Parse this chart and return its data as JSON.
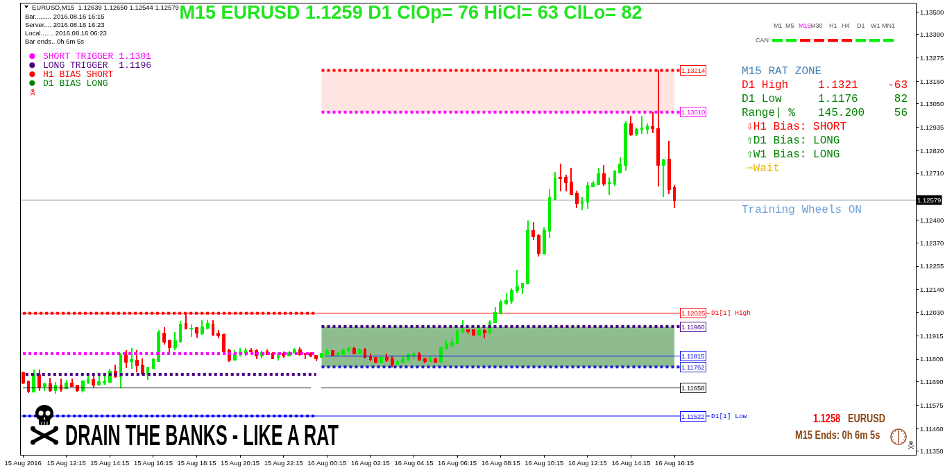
{
  "chart_data": {
    "type": "candlestick",
    "title": "M15 EURUSD 1.1259 D1 ClOp= 76 HiCl= 63 ClLo= 82",
    "x": [
      "2016-08-15T10:15",
      "2016-08-15T10:30",
      "2016-08-15T10:45",
      "2016-08-15T11:00",
      "2016-08-15T11:15",
      "2016-08-15T11:30",
      "2016-08-15T11:45",
      "2016-08-15T12:00",
      "2016-08-15T12:15",
      "2016-08-15T12:30",
      "2016-08-15T12:45",
      "2016-08-15T13:00",
      "2016-08-15T13:15",
      "2016-08-15T13:30",
      "2016-08-15T13:45",
      "2016-08-15T14:00",
      "2016-08-15T14:15",
      "2016-08-15T14:30",
      "2016-08-15T14:45",
      "2016-08-15T15:00",
      "2016-08-15T15:15",
      "2016-08-15T15:30",
      "2016-08-15T15:45",
      "2016-08-15T16:00",
      "2016-08-15T16:15",
      "2016-08-15T16:30",
      "2016-08-15T16:45",
      "2016-08-15T17:00",
      "2016-08-15T17:15",
      "2016-08-15T17:30",
      "2016-08-15T17:45",
      "2016-08-15T18:00",
      "2016-08-15T18:15",
      "2016-08-15T18:30",
      "2016-08-15T18:45",
      "2016-08-15T19:00",
      "2016-08-15T19:15",
      "2016-08-15T19:30",
      "2016-08-15T19:45",
      "2016-08-15T20:00",
      "2016-08-15T20:15",
      "2016-08-15T20:30",
      "2016-08-15T20:45",
      "2016-08-15T21:00",
      "2016-08-15T21:15",
      "2016-08-15T21:30",
      "2016-08-15T21:45",
      "2016-08-15T22:00",
      "2016-08-15T22:15",
      "2016-08-15T22:30",
      "2016-08-15T22:45",
      "2016-08-15T23:00",
      "2016-08-15T23:15",
      "2016-08-15T23:30",
      "2016-08-15T23:45",
      "2016-08-16T00:00",
      "2016-08-16T00:15",
      "2016-08-16T00:30",
      "2016-08-16T00:45",
      "2016-08-16T01:00",
      "2016-08-16T01:15",
      "2016-08-16T01:30",
      "2016-08-16T01:45",
      "2016-08-16T02:00",
      "2016-08-16T02:15",
      "2016-08-16T02:30",
      "2016-08-16T02:45",
      "2016-08-16T03:00",
      "2016-08-16T03:15",
      "2016-08-16T03:30",
      "2016-08-16T03:45",
      "2016-08-16T04:00",
      "2016-08-16T04:15",
      "2016-08-16T04:30",
      "2016-08-16T04:45",
      "2016-08-16T05:00",
      "2016-08-16T05:15",
      "2016-08-16T05:30",
      "2016-08-16T05:45",
      "2016-08-16T06:00",
      "2016-08-16T06:15",
      "2016-08-16T06:30",
      "2016-08-16T06:45",
      "2016-08-16T07:00",
      "2016-08-16T07:15",
      "2016-08-16T07:30",
      "2016-08-16T07:45",
      "2016-08-16T08:00",
      "2016-08-16T08:15",
      "2016-08-16T08:30",
      "2016-08-16T08:45",
      "2016-08-16T09:00",
      "2016-08-16T09:15",
      "2016-08-16T09:30",
      "2016-08-16T09:45",
      "2016-08-16T10:00",
      "2016-08-16T10:15",
      "2016-08-16T10:30",
      "2016-08-16T10:45",
      "2016-08-16T11:00",
      "2016-08-16T11:15",
      "2016-08-16T11:30",
      "2016-08-16T11:45",
      "2016-08-16T12:00",
      "2016-08-16T12:15",
      "2016-08-16T12:30",
      "2016-08-16T12:45",
      "2016-08-16T13:00",
      "2016-08-16T13:15",
      "2016-08-16T13:30",
      "2016-08-16T13:45",
      "2016-08-16T14:00",
      "2016-08-16T14:15",
      "2016-08-16T14:30",
      "2016-08-16T14:45",
      "2016-08-16T15:00",
      "2016-08-16T15:15",
      "2016-08-16T15:30",
      "2016-08-16T15:45",
      "2016-08-16T16:00",
      "2016-08-16T16:15"
    ],
    "ohlc": [
      [
        1.11732,
        1.11735,
        1.11683,
        1.11686
      ],
      [
        1.11692,
        1.11692,
        1.11638,
        1.11644
      ],
      [
        1.11641,
        1.11746,
        1.1164,
        1.11726
      ],
      [
        1.11723,
        1.11746,
        1.11649,
        1.11666
      ],
      [
        1.11669,
        1.11683,
        1.11647,
        1.11679
      ],
      [
        1.11678,
        1.11706,
        1.11644,
        1.11647
      ],
      [
        1.11647,
        1.11685,
        1.11635,
        1.11672
      ],
      [
        1.11672,
        1.11703,
        1.11644,
        1.11656
      ],
      [
        1.11658,
        1.11696,
        1.11658,
        1.11681
      ],
      [
        1.11681,
        1.11701,
        1.11667,
        1.11669
      ],
      [
        1.11672,
        1.11672,
        1.11644,
        1.11647
      ],
      [
        1.11649,
        1.11696,
        1.11642,
        1.11692
      ],
      [
        1.1169,
        1.11715,
        1.11681,
        1.11699
      ],
      [
        1.11699,
        1.11715,
        1.1166,
        1.11676
      ],
      [
        1.11676,
        1.11721,
        1.11676,
        1.11688
      ],
      [
        1.11686,
        1.11721,
        1.11678,
        1.11688
      ],
      [
        1.1169,
        1.11749,
        1.1169,
        1.11739
      ],
      [
        1.11739,
        1.11771,
        1.11712,
        1.11715
      ],
      [
        1.11715,
        1.11828,
        1.11664,
        1.11819
      ],
      [
        1.11817,
        1.11841,
        1.1176,
        1.11788
      ],
      [
        1.11789,
        1.11853,
        1.11757,
        1.11796
      ],
      [
        1.11794,
        1.11841,
        1.11739,
        1.11769
      ],
      [
        1.11769,
        1.11801,
        1.11726,
        1.11728
      ],
      [
        1.11726,
        1.1176,
        1.11701,
        1.1176
      ],
      [
        1.11757,
        1.11803,
        1.11757,
        1.11796
      ],
      [
        1.11791,
        1.11939,
        1.11791,
        1.1193
      ],
      [
        1.11927,
        1.11954,
        1.11875,
        1.11887
      ],
      [
        1.11893,
        1.11893,
        1.11828,
        1.11859
      ],
      [
        1.11859,
        1.1193,
        1.11848,
        1.11889
      ],
      [
        1.11887,
        1.11984,
        1.11885,
        1.1197
      ],
      [
        1.11975,
        1.12025,
        1.1195,
        1.1195
      ],
      [
        1.1195,
        1.11966,
        1.11912,
        1.11951
      ],
      [
        1.11952,
        1.11952,
        1.11909,
        1.1193
      ],
      [
        1.11925,
        1.11988,
        1.11923,
        1.11957
      ],
      [
        1.11952,
        1.11991,
        1.1195,
        1.11975
      ],
      [
        1.1197,
        1.11986,
        1.11916,
        1.11923
      ],
      [
        1.11927,
        1.11941,
        1.11907,
        1.11916
      ],
      [
        1.11921,
        1.11923,
        1.11837,
        1.11837
      ],
      [
        1.11841,
        1.11848,
        1.11791,
        1.11796
      ],
      [
        1.11798,
        1.11841,
        1.11798,
        1.11825
      ],
      [
        1.11828,
        1.11851,
        1.11817,
        1.11835
      ],
      [
        1.11832,
        1.11853,
        1.11817,
        1.11841
      ],
      [
        1.11841,
        1.11853,
        1.11832,
        1.11839
      ],
      [
        1.11841,
        1.11844,
        1.11803,
        1.11817
      ],
      [
        1.11817,
        1.11837,
        1.11807,
        1.11832
      ],
      [
        1.11835,
        1.11844,
        1.11823,
        1.11825
      ],
      [
        1.11828,
        1.11832,
        1.11803,
        1.11805
      ],
      [
        1.1181,
        1.11832,
        1.11796,
        1.11825
      ],
      [
        1.11828,
        1.11835,
        1.1181,
        1.11817
      ],
      [
        1.11817,
        1.11837,
        1.11817,
        1.11832
      ],
      [
        1.11832,
        1.11853,
        1.11832,
        1.11844
      ],
      [
        1.11844,
        1.11855,
        1.11821,
        1.11825
      ],
      [
        1.11828,
        1.11828,
        1.11805,
        1.11823
      ],
      [
        1.11828,
        1.1183,
        1.11814,
        1.11817
      ],
      [
        1.11817,
        1.11817,
        1.11794,
        1.11805
      ],
      [
        1.11812,
        1.11828,
        1.11812,
        1.11828
      ],
      [
        1.11825,
        1.11848,
        1.11825,
        1.11839
      ],
      [
        1.11841,
        1.11841,
        1.11819,
        1.11821
      ],
      [
        1.11825,
        1.11832,
        1.11819,
        1.11827
      ],
      [
        1.11823,
        1.11848,
        1.11823,
        1.11844
      ],
      [
        1.11844,
        1.11857,
        1.11841,
        1.11853
      ],
      [
        1.11853,
        1.11859,
        1.11828,
        1.11828
      ],
      [
        1.11828,
        1.11851,
        1.11828,
        1.11846
      ],
      [
        1.11844,
        1.11853,
        1.11807,
        1.1181
      ],
      [
        1.11812,
        1.11823,
        1.11794,
        1.11801
      ],
      [
        1.11807,
        1.11807,
        1.11785,
        1.11787
      ],
      [
        1.11785,
        1.11807,
        1.11785,
        1.11807
      ],
      [
        1.11807,
        1.11823,
        1.11791,
        1.11796
      ],
      [
        1.11801,
        1.1181,
        1.11762,
        1.11778
      ],
      [
        1.11776,
        1.11789,
        1.11776,
        1.11787
      ],
      [
        1.11785,
        1.1181,
        1.11785,
        1.11798
      ],
      [
        1.11796,
        1.11825,
        1.11794,
        1.11821
      ],
      [
        1.11822,
        1.1183,
        1.11805,
        1.11824
      ],
      [
        1.11823,
        1.1183,
        1.11798,
        1.11798
      ],
      [
        1.11801,
        1.11803,
        1.11783,
        1.11791
      ],
      [
        1.11791,
        1.1181,
        1.11791,
        1.11801
      ],
      [
        1.11801,
        1.11805,
        1.11787,
        1.11787
      ],
      [
        1.11789,
        1.11857,
        1.11783,
        1.11855
      ],
      [
        1.11853,
        1.11889,
        1.11851,
        1.11871
      ],
      [
        1.11869,
        1.11898,
        1.11862,
        1.11882
      ],
      [
        1.1188,
        1.11946,
        1.1188,
        1.11936
      ],
      [
        1.11932,
        1.11986,
        1.11932,
        1.11946
      ],
      [
        1.11943,
        1.11943,
        1.1193,
        1.11936
      ],
      [
        1.11943,
        1.11943,
        1.11921,
        1.11921
      ],
      [
        1.11921,
        1.1195,
        1.11918,
        1.11939
      ],
      [
        1.11941,
        1.11946,
        1.11907,
        1.11934
      ],
      [
        1.11934,
        1.11988,
        1.11927,
        1.1198
      ],
      [
        1.1198,
        1.12052,
        1.1198,
        1.12027
      ],
      [
        1.12025,
        1.12086,
        1.12023,
        1.12079
      ],
      [
        1.12077,
        1.1212,
        1.12068,
        1.12086
      ],
      [
        1.12084,
        1.12143,
        1.12075,
        1.12136
      ],
      [
        1.12136,
        1.12236,
        1.12125,
        1.12154
      ],
      [
        1.12152,
        1.1217,
        1.12122,
        1.1217
      ],
      [
        1.1217,
        1.12476,
        1.1217,
        1.12428
      ],
      [
        1.12428,
        1.12468,
        1.12389,
        1.12402
      ],
      [
        1.12405,
        1.12407,
        1.12305,
        1.12319
      ],
      [
        1.12317,
        1.12441,
        1.12317,
        1.12428
      ],
      [
        1.12428,
        1.12629,
        1.12398,
        1.12592
      ],
      [
        1.12584,
        1.12713,
        1.12581,
        1.12688
      ],
      [
        1.12691,
        1.12756,
        1.12627,
        1.12686
      ],
      [
        1.12691,
        1.12699,
        1.12627,
        1.12665
      ],
      [
        1.12667,
        1.12735,
        1.12609,
        1.12609
      ],
      [
        1.12611,
        1.12622,
        1.12545,
        1.12565
      ],
      [
        1.12565,
        1.12593,
        1.12534,
        1.12572
      ],
      [
        1.1257,
        1.12667,
        1.12541,
        1.12649
      ],
      [
        1.12645,
        1.1267,
        1.12645,
        1.12659
      ],
      [
        1.12656,
        1.12735,
        1.12656,
        1.12706
      ],
      [
        1.12706,
        1.12747,
        1.12652,
        1.12659
      ],
      [
        1.12662,
        1.12688,
        1.12609,
        1.12663
      ],
      [
        1.12659,
        1.12724,
        1.12654,
        1.12717
      ],
      [
        1.12713,
        1.12785,
        1.12713,
        1.12756
      ],
      [
        1.12751,
        1.12962,
        1.12728,
        1.12953
      ],
      [
        1.12953,
        1.12987,
        1.12896,
        1.12901
      ],
      [
        1.12903,
        1.12932,
        1.12896,
        1.12925
      ],
      [
        1.12923,
        1.12987,
        1.12907,
        1.12932
      ],
      [
        1.12928,
        1.12951,
        1.12907,
        1.12939
      ],
      [
        1.12937,
        1.13009,
        1.12912,
        1.12932
      ],
      [
        1.12928,
        1.13214,
        1.12649,
        1.12751
      ],
      [
        1.12751,
        1.12778,
        1.12599,
        1.12776
      ],
      [
        1.12778,
        1.12867,
        1.12611,
        1.12633
      ],
      [
        1.12639,
        1.1265,
        1.12544,
        1.12579
      ]
    ],
    "colors": [
      "#ff0000",
      "#ff0000",
      "#00ee00",
      "#ff0000",
      "#00ee00",
      "#ff0000",
      "#00ee00",
      "#ff0000",
      "#00ee00",
      "#ff0000",
      "#ff0000",
      "#00ee00",
      "#00ee00",
      "#ff0000",
      "#00ee00",
      "#00ee00",
      "#00ee00",
      "#ff0000",
      "#00ee00",
      "#ff0000",
      "#00ee00",
      "#ff0000",
      "#ff0000",
      "#00ee00",
      "#00ee00",
      "#00ee00",
      "#ff0000",
      "#ff0000",
      "#00ee00",
      "#00ee00",
      "#ff0000",
      "#00ee00",
      "#ff0000",
      "#00ee00",
      "#00ee00",
      "#ff0000",
      "#ff0000",
      "#ff0000",
      "#ff0000",
      "#00ee00",
      "#00ee00",
      "#00ee00",
      "#ff0000",
      "#ff0000",
      "#00ee00",
      "#ff0000",
      "#ff0000",
      "#00ee00",
      "#ff0000",
      "#00ee00",
      "#00ee00",
      "#ff0000",
      "#ff0000",
      "#ff0000",
      "#ff0000",
      "#00ee00",
      "#00ee00",
      "#ff0000",
      "#00ee00",
      "#00ee00",
      "#00ee00",
      "#ff0000",
      "#00ee00",
      "#ff0000",
      "#ff0000",
      "#ff0000",
      "#00ee00",
      "#ff0000",
      "#ff0000",
      "#00ee00",
      "#00ee00",
      "#00ee00",
      "#00ee00",
      "#ff0000",
      "#ff0000",
      "#00ee00",
      "#ff0000",
      "#00ee00",
      "#00ee00",
      "#00ee00",
      "#00ee00",
      "#00ee00",
      "#ff0000",
      "#ff0000",
      "#00ee00",
      "#ff0000",
      "#00ee00",
      "#00ee00",
      "#00ee00",
      "#00ee00",
      "#00ee00",
      "#00ee00",
      "#00ee00",
      "#00ee00",
      "#ff0000",
      "#ff0000",
      "#00ee00",
      "#00ee00",
      "#00ee00",
      "#ff0000",
      "#ff0000",
      "#ff0000",
      "#ff0000",
      "#00ee00",
      "#00ee00",
      "#00ee00",
      "#00ee00",
      "#ff0000",
      "#00ee00",
      "#00ee00",
      "#00ee00",
      "#00ee00",
      "#ff0000",
      "#00ee00",
      "#00ee00",
      "#00ee00",
      "#ff0000",
      "#ff0000",
      "#00ee00",
      "#ff0000",
      "#ff0000"
    ],
    "series": [
      {
        "type": "line",
        "x": [
          "2016-08-16T00:00",
          "2016-08-16T16:15"
        ],
        "values": [
          null,
          null
        ],
        "lower": [
          1.1301,
          1.1301
        ],
        "upper": [
          1.13214,
          1.13214
        ],
        "color": "#ffe4e1"
      },
      {
        "type": "line",
        "x": [
          "2016-08-16T00:00",
          "2016-08-16T16:15"
        ],
        "values": [
          null,
          null
        ],
        "lower": [
          1.11762,
          1.11762
        ],
        "upper": [
          1.1196,
          1.1196
        ],
        "color": "#8fbc8f"
      },
      {
        "type": "line",
        "x": [
          "2016-08-15T10:15",
          "2016-08-15T23:45"
        ],
        "values": [
          1.12025,
          1.12025
        ],
        "color": "#ff0000",
        "line_style": "dotted"
      },
      {
        "type": "line",
        "x": [
          "2016-08-15T10:15",
          "2016-08-15T23:45"
        ],
        "values": [
          1.11828,
          1.11828
        ],
        "color": "#ff00ff",
        "line_style": "dotted"
      },
      {
        "type": "line",
        "x": [
          "2016-08-15T10:22",
          "2016-08-15T23:45"
        ],
        "values": [
          1.11726,
          1.11726
        ],
        "color": "#4b0082",
        "line_style": "dotted"
      },
      {
        "type": "line",
        "x": [
          "2016-08-15T10:15",
          "2016-08-15T23:45"
        ],
        "values": [
          1.11522,
          1.11522
        ],
        "color": "#0000ff",
        "line_style": "dotted"
      },
      {
        "type": "line",
        "x": [
          "2016-08-15T10:15",
          "2016-08-15T23:30",
          "2016-08-15T23:45",
          "2016-08-16T00:00",
          "2016-08-16T16:30"
        ],
        "values": [
          1.11658,
          1.11658,
          null,
          1.11658,
          1.11658
        ],
        "color": "#000000"
      },
      {
        "type": "line",
        "x": [
          "2016-08-16T00:00",
          "2016-08-16T16:30"
        ],
        "values": [
          1.13214,
          1.13214
        ],
        "color": "#ff0000",
        "line_style": "dotted"
      },
      {
        "type": "line",
        "x": [
          "2016-08-16T00:00",
          "2016-08-16T16:30"
        ],
        "values": [
          1.1301,
          1.1301
        ],
        "color": "#ff00ff",
        "line_style": "dotted"
      },
      {
        "type": "line",
        "x": [
          "2016-08-16T00:00",
          "2016-08-16T16:30"
        ],
        "values": [
          1.1196,
          1.1196
        ],
        "color": "#4b0082",
        "line_style": "dotted"
      },
      {
        "type": "line",
        "x": [
          "2016-08-16T00:10",
          "2016-08-16T16:30"
        ],
        "values": [
          1.11815,
          1.11815
        ],
        "color": "#0000ff"
      },
      {
        "type": "line",
        "x": [
          "2016-08-16T00:00",
          "2016-08-16T16:30"
        ],
        "values": [
          1.11762,
          1.11762
        ],
        "color": "#2222cc",
        "line_style": "dotted"
      }
    ],
    "ref_lines": [
      {
        "axis": "y",
        "value": 1.12579,
        "label": "1.12579",
        "color": "#778899"
      },
      {
        "axis": "y",
        "value": 1.12025,
        "label": "D1[1] High",
        "color": "#ff0000"
      },
      {
        "axis": "y",
        "value": 1.11522,
        "label": "D1[1] Low",
        "color": "#0000ff"
      }
    ],
    "xlim": [
      "2016-08-15T10:09",
      "2016-08-17T03:22"
    ],
    "ylim": [
      1.11332,
      1.13542
    ],
    "xticks": [
      {
        "value": "2016-08-15T10:15",
        "label": "15 Aug 2016"
      },
      {
        "value": "2016-08-15T12:15",
        "label": "15 Aug 12:15"
      },
      {
        "value": "2016-08-15T14:15",
        "label": "15 Aug 14:15"
      },
      {
        "value": "2016-08-15T16:15",
        "label": "15 Aug 16:15"
      },
      {
        "value": "2016-08-15T18:15",
        "label": "15 Aug 18:15"
      },
      {
        "value": "2016-08-15T20:15",
        "label": "15 Aug 20:15"
      },
      {
        "value": "2016-08-15T22:15",
        "label": "15 Aug 22:15"
      },
      {
        "value": "2016-08-16T00:15",
        "label": "16 Aug 00:15"
      },
      {
        "value": "2016-08-16T02:15",
        "label": "16 Aug 02:15"
      },
      {
        "value": "2016-08-16T04:15",
        "label": "16 Aug 04:15"
      },
      {
        "value": "2016-08-16T06:15",
        "label": "16 Aug 06:15"
      },
      {
        "value": "2016-08-16T08:15",
        "label": "16 Aug 08:15"
      },
      {
        "value": "2016-08-16T10:15",
        "label": "16 Aug 10:15"
      },
      {
        "value": "2016-08-16T12:15",
        "label": "16 Aug 12:15"
      },
      {
        "value": "2016-08-16T14:15",
        "label": "16 Aug 14:15"
      },
      {
        "value": "2016-08-16T16:15",
        "label": "16 Aug 16:15"
      }
    ],
    "yticks": [
      {
        "value": 1.135,
        "label": "1.13500"
      },
      {
        "value": 1.1339,
        "label": "1.13390"
      },
      {
        "value": 1.13275,
        "label": "1.13275"
      },
      {
        "value": 1.1316,
        "label": "1.13160"
      },
      {
        "value": 1.1305,
        "label": "1.13050"
      },
      {
        "value": 1.12935,
        "label": "1.12935"
      },
      {
        "value": 1.1282,
        "label": "1.12820"
      },
      {
        "value": 1.1271,
        "label": "1.12710"
      },
      {
        "value": 1.12595,
        "label": null
      },
      {
        "value": 1.1248,
        "label": "1.12480"
      },
      {
        "value": 1.1237,
        "label": "1.12370"
      },
      {
        "value": 1.12255,
        "label": "1.12255"
      },
      {
        "value": 1.1214,
        "label": "1.12140"
      },
      {
        "value": 1.1203,
        "label": "1.12030"
      },
      {
        "value": 1.11915,
        "label": "1.11915"
      },
      {
        "value": 1.118,
        "label": "1.11800"
      },
      {
        "value": 1.1169,
        "label": "1.11690"
      },
      {
        "value": 1.11575,
        "label": "1.11575"
      },
      {
        "value": 1.1146,
        "label": "1.11460"
      },
      {
        "value": 1.1135,
        "label": "1.11350"
      }
    ],
    "annotations": [
      "EURUSD,M15  1.12639 1.12650 1.12544 1.12579",
      "Bar......... 2016.08.16 16:15",
      "Server.... 2016.08.16 16:23",
      "Local....... 2016.08.16 06:23",
      "Bar ends.. 0h 6m 5s",
      "SHORT TRIGGER 1.1301",
      "LONG TRIGGER  1.1196",
      "H1 BIAS SHORT",
      "D1 BIAS LONG",
      "M1",
      "M5",
      "M15",
      "M30",
      "H1",
      "H4",
      "D1",
      "W1",
      "MN1",
      "CAN",
      "M15 RAT ZONE",
      "D1 High",
      "1.1321",
      "-63",
      "D1 Low",
      "1.1176",
      "82",
      "Range| %",
      "145.200",
      "56",
      "⇩H1 Bias: SHORT",
      "⇧D1 Bias: LONG",
      "⇧W1 Bias: LONG",
      "⇨Wait",
      "Training Wheels ON",
      "DRAIN THE BANKS - LIKE A RAT",
      "1.1258",
      "EURUSD",
      "M15 Ends: 0h 6m 5s",
      {
        "text": "1.13214",
        "x": "2016-08-16T16:30",
        "y": 1.13214
      },
      {
        "text": "1.13010",
        "x": "2016-08-16T16:30",
        "y": 1.1301
      },
      {
        "text": "1.12025",
        "x": "2016-08-16T16:30",
        "y": 1.12025
      },
      {
        "text": "1.11960",
        "x": "2016-08-16T16:30",
        "y": 1.1196
      },
      {
        "text": "1.11815",
        "x": "2016-08-16T16:30",
        "y": 1.11815
      },
      {
        "text": "1.11762",
        "x": "2016-08-16T16:30",
        "y": 1.11762
      },
      {
        "text": "1.11658",
        "x": "2016-08-16T16:30",
        "y": 1.11658
      },
      {
        "text": "1.11522",
        "x": "2016-08-16T16:30",
        "y": 1.11522
      }
    ]
  }
}
